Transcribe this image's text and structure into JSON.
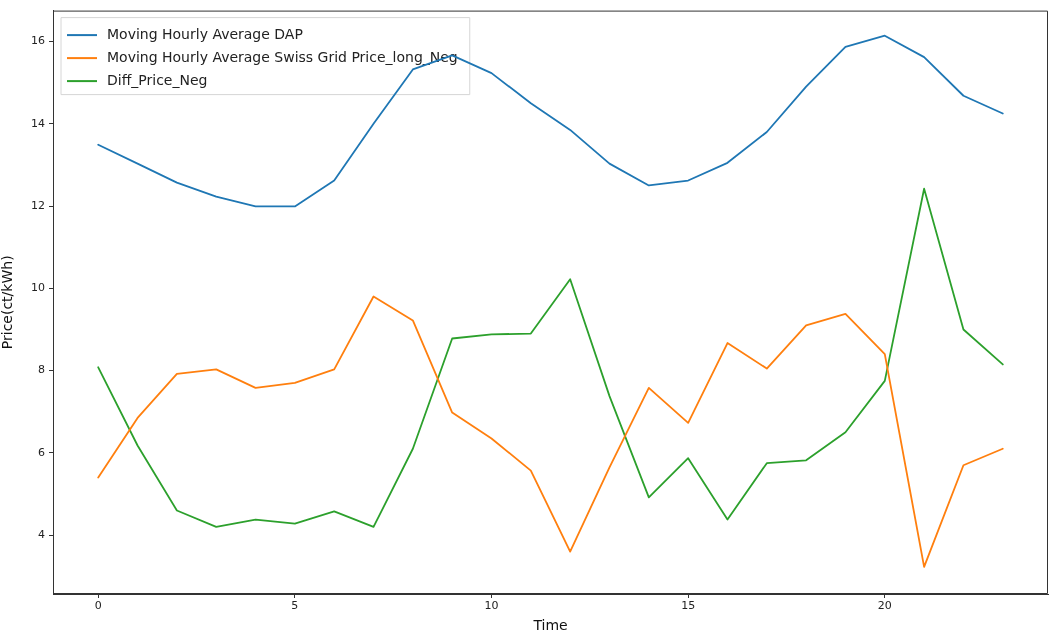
{
  "chart_data": {
    "type": "line",
    "xlabel": "Time",
    "ylabel": "Price(ct/kWh)",
    "x": [
      0,
      1,
      2,
      3,
      4,
      5,
      6,
      7,
      8,
      9,
      10,
      11,
      12,
      13,
      14,
      15,
      16,
      17,
      18,
      19,
      20,
      21,
      22,
      23
    ],
    "xlim": [
      -1.15,
      24.15
    ],
    "xticks": [
      0,
      5,
      10,
      15,
      20
    ],
    "ylim": [
      2.57,
      16.75
    ],
    "yticks": [
      4,
      6,
      8,
      10,
      12,
      14,
      16
    ],
    "grid": false,
    "legend": "top left",
    "marker": "none",
    "line_style": "solid",
    "series": [
      {
        "name": "Moving Hourly Average DAP",
        "color": "#1f77b4",
        "values": [
          13.49,
          13.03,
          12.57,
          12.23,
          11.99,
          11.99,
          12.62,
          14.0,
          15.32,
          15.66,
          15.23,
          14.5,
          13.85,
          13.03,
          12.5,
          12.62,
          13.05,
          13.8,
          14.9,
          15.87,
          16.14,
          15.62,
          14.68,
          14.25
        ]
      },
      {
        "name": "Moving Hourly Average Swiss Grid Price_long_Neg",
        "color": "#ff7f0e",
        "values": [
          5.4,
          6.85,
          7.92,
          8.03,
          7.58,
          7.7,
          8.03,
          9.8,
          9.22,
          6.98,
          6.35,
          5.57,
          3.6,
          5.65,
          7.58,
          6.73,
          8.67,
          8.05,
          9.1,
          9.38,
          8.4,
          3.23,
          5.7,
          6.1
        ]
      },
      {
        "name": "Diff_Price_Neg",
        "color": "#2ca02c",
        "values": [
          8.08,
          6.18,
          4.6,
          4.2,
          4.38,
          4.28,
          4.58,
          4.2,
          6.1,
          8.78,
          8.88,
          8.9,
          10.22,
          7.38,
          4.92,
          5.87,
          4.38,
          5.75,
          5.82,
          6.5,
          7.75,
          12.42,
          9.0,
          8.15
        ]
      }
    ]
  }
}
